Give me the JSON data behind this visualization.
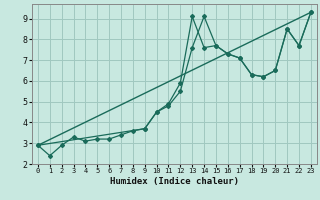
{
  "xlabel": "Humidex (Indice chaleur)",
  "background_color": "#c8e8e0",
  "grid_color": "#a0c8c0",
  "line_color": "#1a6b5a",
  "xlim": [
    -0.5,
    23.5
  ],
  "ylim": [
    2.0,
    9.7
  ],
  "xticks": [
    0,
    1,
    2,
    3,
    4,
    5,
    6,
    7,
    8,
    9,
    10,
    11,
    12,
    13,
    14,
    15,
    16,
    17,
    18,
    19,
    20,
    21,
    22,
    23
  ],
  "yticks": [
    2,
    3,
    4,
    5,
    6,
    7,
    8,
    9
  ],
  "line1_x": [
    0,
    1,
    2,
    3,
    4,
    5,
    6,
    7,
    8,
    9,
    10,
    11,
    12,
    13,
    14,
    15,
    16,
    17,
    18,
    19,
    20,
    21,
    22,
    23
  ],
  "line1_y": [
    2.9,
    2.4,
    2.9,
    3.3,
    3.1,
    3.2,
    3.2,
    3.4,
    3.6,
    3.7,
    4.5,
    4.8,
    5.5,
    7.6,
    9.1,
    7.7,
    7.3,
    7.1,
    6.3,
    6.2,
    6.5,
    8.5,
    7.7,
    9.3
  ],
  "line2_x": [
    0,
    9,
    10,
    11,
    12,
    13,
    14,
    15,
    16,
    17,
    18,
    19,
    20,
    21,
    22,
    23
  ],
  "line2_y": [
    2.9,
    3.7,
    4.5,
    4.9,
    5.9,
    9.1,
    7.6,
    7.7,
    7.3,
    7.1,
    6.3,
    6.2,
    6.5,
    8.5,
    7.7,
    9.3
  ],
  "line3_x": [
    0,
    23
  ],
  "line3_y": [
    2.9,
    9.3
  ]
}
